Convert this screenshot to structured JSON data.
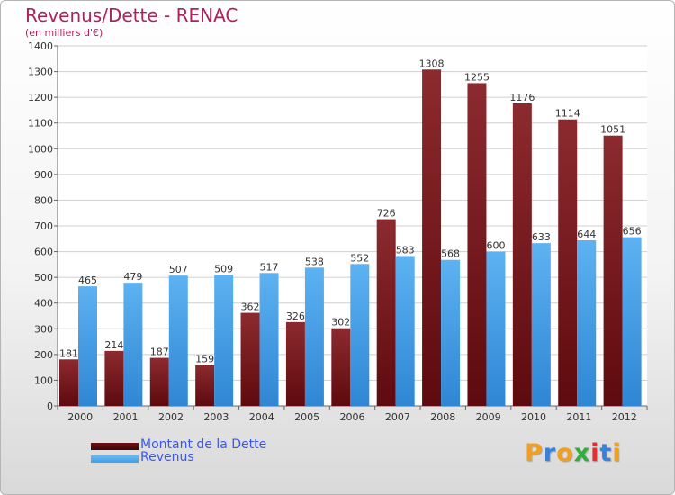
{
  "title": "Revenus/Dette - RENAC",
  "subtitle": "(en milliers d'€)",
  "colors": {
    "title": "#a9235f",
    "dette": "#6e0f12",
    "revenus": "#3f9ee6",
    "legend_text": "#3a58f0"
  },
  "legend": [
    {
      "label": "Montant de la Dette",
      "color": "#6e0f12"
    },
    {
      "label": "Revenus",
      "color": "#3f9ee6"
    }
  ],
  "logo": {
    "text": "Proxiti",
    "letters": [
      "P",
      "r",
      "o",
      "x",
      "i",
      "t",
      "i"
    ],
    "colors": [
      "#f0a020",
      "#3a7fd8",
      "#f0a020",
      "#2fae3a",
      "#e03030",
      "#3a7fd8",
      "#f0a020"
    ]
  },
  "chart_data": {
    "type": "bar",
    "title": "Revenus/Dette - RENAC",
    "subtitle": "(en milliers d'€)",
    "categories": [
      "2000",
      "2001",
      "2002",
      "2003",
      "2004",
      "2005",
      "2006",
      "2007",
      "2008",
      "2009",
      "2010",
      "2011",
      "2012"
    ],
    "series": [
      {
        "name": "Montant de la Dette",
        "values": [
          181,
          214,
          187,
          159,
          362,
          326,
          302,
          726,
          1308,
          1255,
          1176,
          1114,
          1051
        ]
      },
      {
        "name": "Revenus",
        "values": [
          465,
          479,
          507,
          509,
          517,
          538,
          552,
          583,
          568,
          600,
          633,
          644,
          656
        ]
      }
    ],
    "ylim": [
      0,
      1400
    ],
    "yticks": [
      0,
      100,
      200,
      300,
      400,
      500,
      600,
      700,
      800,
      900,
      1000,
      1100,
      1200,
      1300,
      1400
    ],
    "grid": true,
    "legend_position": "bottom-left"
  }
}
